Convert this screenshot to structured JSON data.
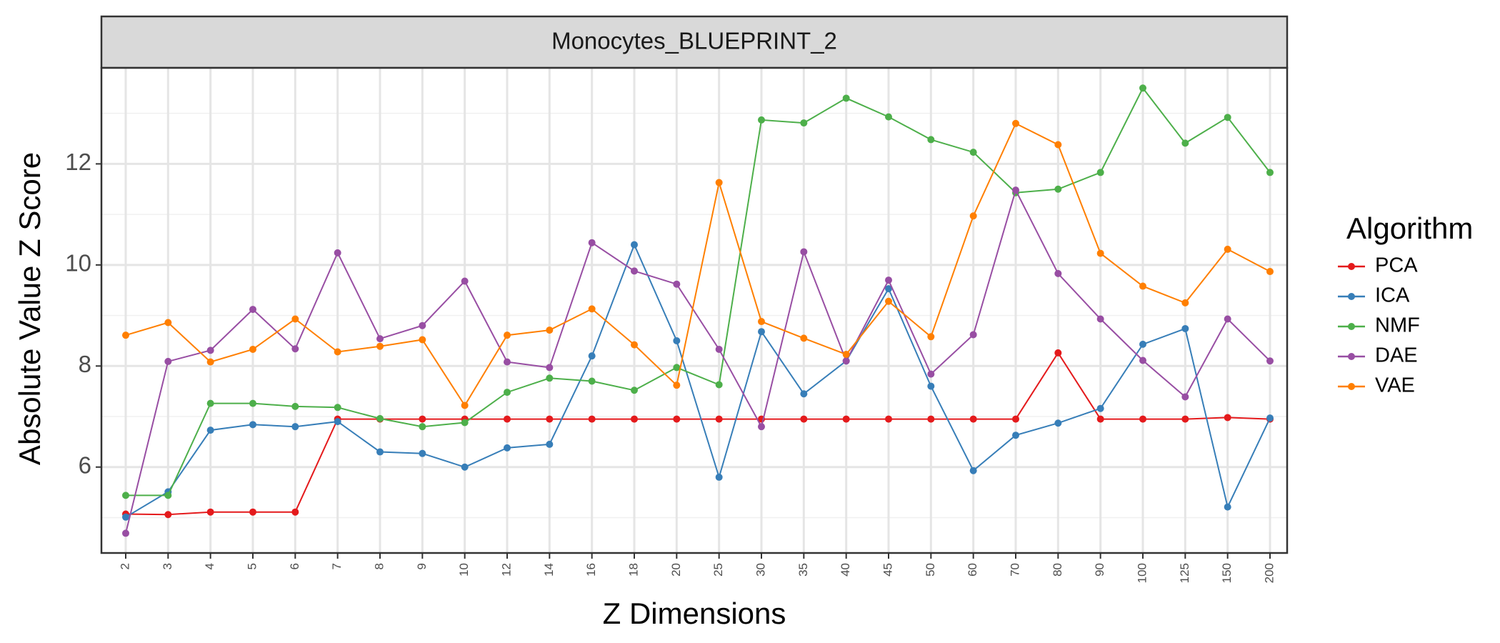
{
  "chart_data": {
    "type": "line",
    "facet_title": "Monocytes_BLUEPRINT_2",
    "xlabel": "Z Dimensions",
    "ylabel": "Absolute Value Z Score",
    "categories": [
      "2",
      "3",
      "4",
      "5",
      "6",
      "7",
      "8",
      "9",
      "10",
      "12",
      "14",
      "16",
      "18",
      "20",
      "25",
      "30",
      "35",
      "40",
      "45",
      "50",
      "60",
      "70",
      "80",
      "90",
      "100",
      "125",
      "150",
      "200"
    ],
    "yticks": [
      6,
      8,
      10,
      12
    ],
    "ylim": [
      4.3,
      13.9
    ],
    "grid": true,
    "legend": {
      "title": "Algorithm",
      "position": "right"
    },
    "series": [
      {
        "name": "PCA",
        "color": "#e41a1c",
        "values": [
          5.07,
          5.06,
          5.11,
          5.11,
          5.11,
          6.95,
          6.95,
          6.95,
          6.95,
          6.95,
          6.95,
          6.95,
          6.95,
          6.95,
          6.95,
          6.95,
          6.95,
          6.95,
          6.95,
          6.95,
          6.95,
          6.95,
          8.26,
          6.95,
          6.95,
          6.95,
          6.98,
          6.95
        ]
      },
      {
        "name": "ICA",
        "color": "#377eb8",
        "values": [
          5.01,
          5.51,
          6.73,
          6.84,
          6.8,
          6.9,
          6.3,
          6.27,
          6.0,
          6.38,
          6.45,
          8.2,
          10.4,
          8.5,
          5.8,
          8.68,
          7.45,
          8.1,
          9.53,
          7.6,
          5.93,
          6.63,
          6.87,
          7.16,
          8.43,
          8.74,
          5.21,
          6.97
        ]
      },
      {
        "name": "NMF",
        "color": "#4daf4a",
        "values": [
          5.44,
          5.44,
          7.26,
          7.26,
          7.2,
          7.18,
          6.96,
          6.8,
          6.88,
          7.48,
          7.76,
          7.7,
          7.52,
          7.97,
          7.63,
          12.87,
          12.81,
          13.3,
          12.93,
          12.48,
          12.23,
          11.43,
          11.5,
          11.83,
          13.5,
          12.41,
          12.92,
          11.83
        ]
      },
      {
        "name": "DAE",
        "color": "#984ea3",
        "values": [
          4.69,
          8.09,
          8.31,
          9.12,
          8.34,
          10.24,
          8.54,
          8.8,
          9.68,
          8.08,
          7.97,
          10.44,
          9.88,
          9.62,
          8.33,
          6.8,
          10.26,
          8.1,
          9.7,
          7.84,
          8.62,
          11.48,
          9.83,
          8.93,
          8.11,
          7.39,
          8.93,
          8.1
        ]
      },
      {
        "name": "VAE",
        "color": "#ff7f00",
        "values": [
          8.61,
          8.86,
          8.08,
          8.33,
          8.93,
          8.28,
          8.39,
          8.52,
          7.22,
          8.61,
          8.71,
          9.13,
          8.42,
          7.62,
          11.63,
          8.88,
          8.55,
          8.23,
          9.28,
          8.58,
          10.97,
          12.8,
          12.38,
          10.23,
          9.58,
          9.25,
          10.31,
          9.87
        ]
      }
    ]
  }
}
